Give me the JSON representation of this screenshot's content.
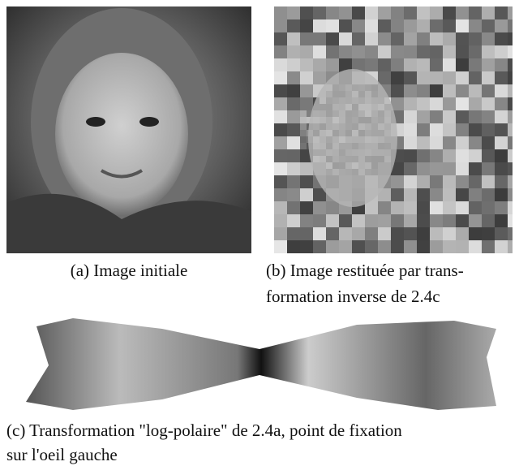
{
  "figures": [
    {
      "caption": [
        "(a) Image initiale"
      ]
    },
    {
      "caption": [
        "(b) Image restituée par trans-",
        "formation inverse de 2.4c"
      ]
    },
    {
      "caption": [
        "(c) Transformation \"log-polaire\" de 2.4a, point de fixation",
        "sur l'oeil gauche"
      ]
    }
  ]
}
